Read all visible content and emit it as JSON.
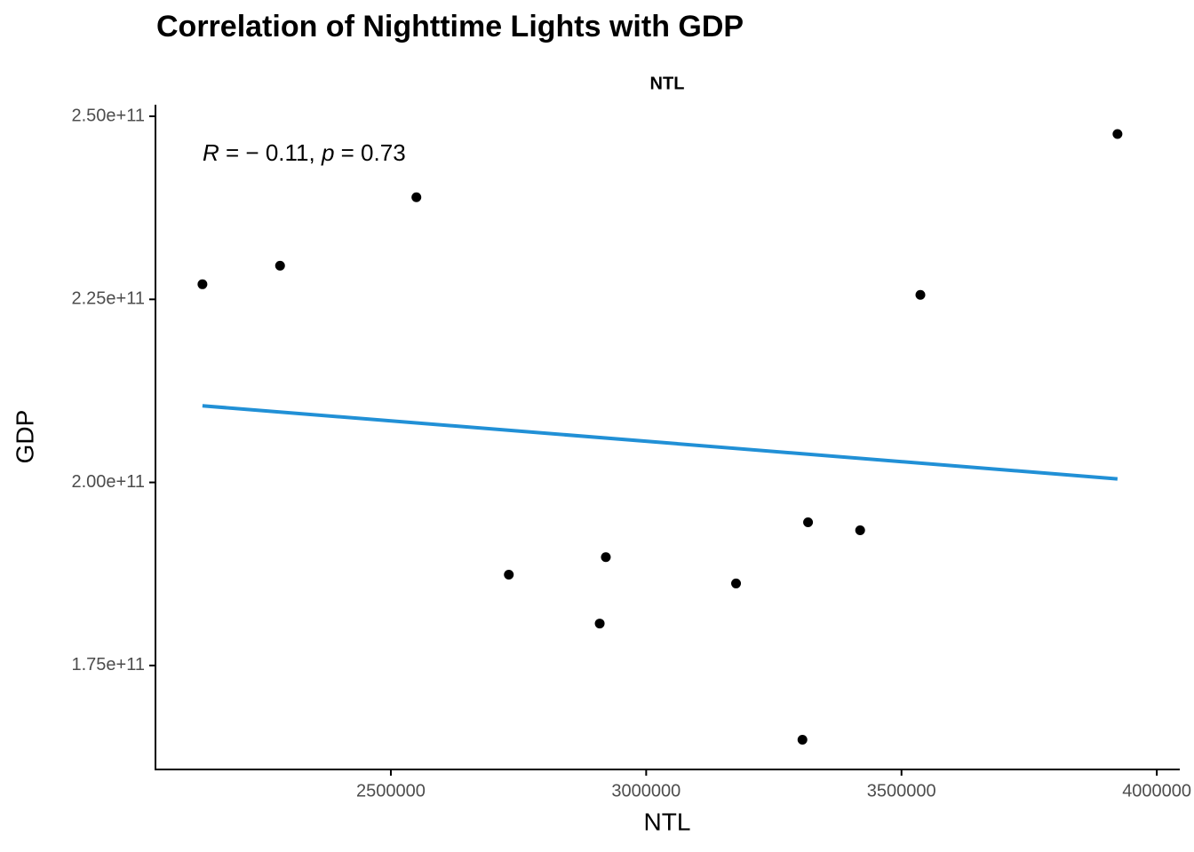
{
  "chart_data": {
    "type": "scatter",
    "title": "Correlation of Nighttime Lights with GDP",
    "facet_label": "NTL",
    "x_label": "NTL",
    "y_label": "GDP",
    "annotation_parts": [
      "R",
      " = − 0.11, ",
      "p",
      " = 0.73"
    ],
    "x": [
      2131000,
      2283000,
      2550000,
      2731000,
      2909000,
      2921000,
      3176000,
      3306000,
      3317000,
      3419000,
      3537000,
      3923000
    ],
    "values": [
      227060000000,
      229600000000,
      238940000000,
      187400000000,
      180730000000,
      189800000000,
      186200000000,
      164860000000,
      194550000000,
      193460000000,
      225610000000,
      247580000000
    ],
    "color": "#000000",
    "trend_line": {
      "x": [
        2131000,
        3923000
      ],
      "values": [
        210460000000,
        200480000000
      ],
      "color": "#2190d6"
    },
    "xlim": [
      2039000,
      4045000
    ],
    "xticks": [
      2500000,
      3000000,
      3500000,
      4000000
    ],
    "ylim": [
      160800000000,
      251580000000
    ],
    "yticks": [
      {
        "value": 175000000000,
        "label": "1.75e+11"
      },
      {
        "value": 200000000000,
        "label": "2.00e+11"
      },
      {
        "value": 225000000000,
        "label": "2.25e+11"
      },
      {
        "value": 250000000000,
        "label": "2.50e+11"
      }
    ]
  }
}
